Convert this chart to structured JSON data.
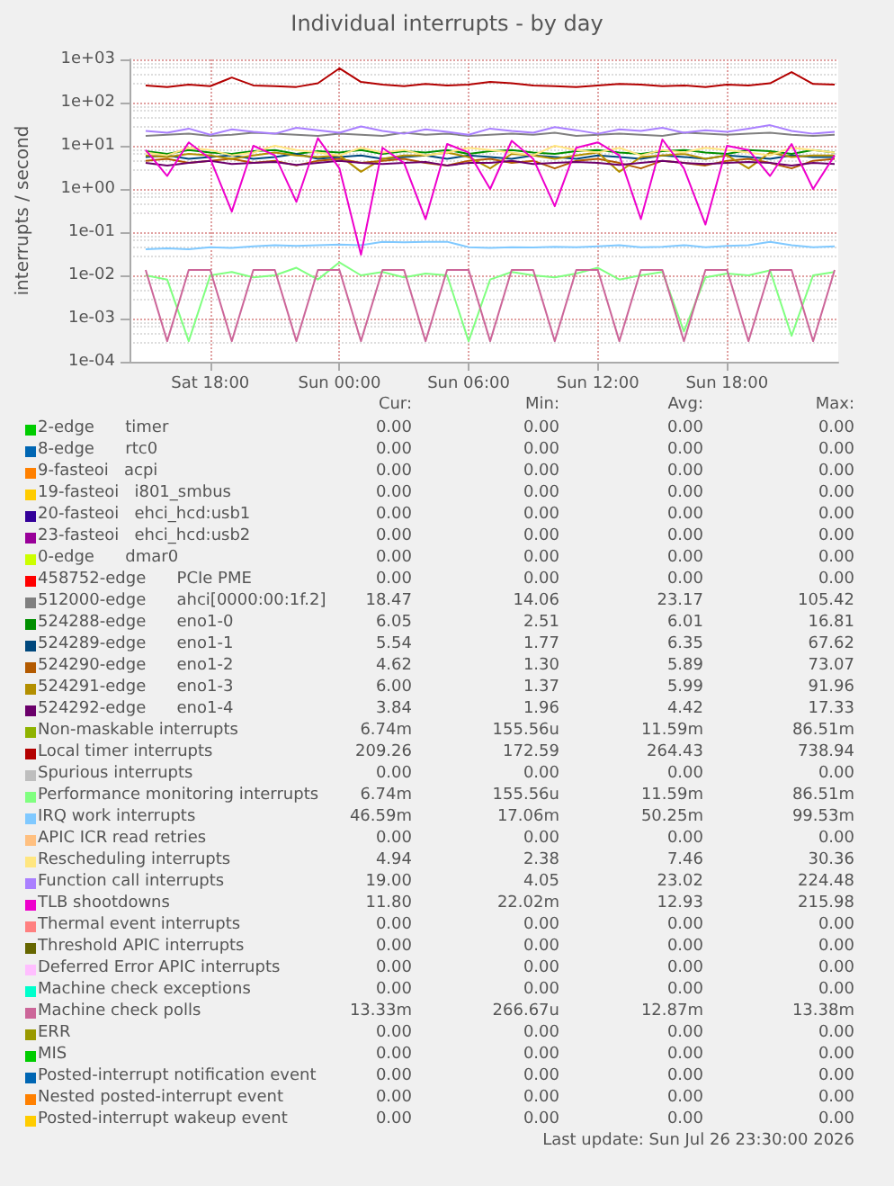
{
  "chart_data": {
    "type": "line",
    "title": "Individual interrupts - by day",
    "ylabel": "interrupts / second",
    "log": "y",
    "grid": true,
    "legend": "bottom",
    "marker": "none",
    "line_style": "solid",
    "xlim": [
      "2026-07-25T14:15",
      "2026-07-26T23:10"
    ],
    "xticks": [
      {
        "value": "2026-07-25T18:00",
        "label": "Sat 18:00"
      },
      {
        "value": "2026-07-26T00:00",
        "label": "Sun 00:00"
      },
      {
        "value": "2026-07-26T06:00",
        "label": "Sun 06:00"
      },
      {
        "value": "2026-07-26T12:00",
        "label": "Sun 12:00"
      },
      {
        "value": "2026-07-26T18:00",
        "label": "Sun 18:00"
      }
    ],
    "ylim": [
      0.0001,
      1000
    ],
    "yticks": [
      {
        "value": 0.0001,
        "label": "1e-04"
      },
      {
        "value": 0.001,
        "label": "1e-03"
      },
      {
        "value": 0.01,
        "label": "1e-02"
      },
      {
        "value": 0.1,
        "label": "1e-01"
      },
      {
        "value": 1,
        "label": "1e+00"
      },
      {
        "value": 10,
        "label": "1e+01"
      },
      {
        "value": 100,
        "label": "1e+02"
      },
      {
        "value": 1000,
        "label": "1e+03"
      }
    ],
    "x": [
      "2026-07-25T15:00",
      "2026-07-25T16:00",
      "2026-07-25T17:00",
      "2026-07-25T18:00",
      "2026-07-25T19:00",
      "2026-07-25T20:00",
      "2026-07-25T21:00",
      "2026-07-25T22:00",
      "2026-07-25T23:00",
      "2026-07-26T00:00",
      "2026-07-26T01:00",
      "2026-07-26T02:00",
      "2026-07-26T03:00",
      "2026-07-26T04:00",
      "2026-07-26T05:00",
      "2026-07-26T06:00",
      "2026-07-26T07:00",
      "2026-07-26T08:00",
      "2026-07-26T09:00",
      "2026-07-26T10:00",
      "2026-07-26T11:00",
      "2026-07-26T12:00",
      "2026-07-26T13:00",
      "2026-07-26T14:00",
      "2026-07-26T15:00",
      "2026-07-26T16:00",
      "2026-07-26T17:00",
      "2026-07-26T18:00",
      "2026-07-26T19:00",
      "2026-07-26T20:00",
      "2026-07-26T21:00",
      "2026-07-26T22:00",
      "2026-07-26T23:00"
    ],
    "series": [
      {
        "name": "2-edge      timer",
        "color": "#00cc00",
        "values": [
          null,
          null,
          null,
          null,
          null,
          null,
          null,
          null,
          null,
          null,
          null,
          null,
          null,
          null,
          null,
          null,
          null,
          null,
          null,
          null,
          null,
          null,
          null,
          null,
          null,
          null,
          null,
          null,
          null,
          null,
          null,
          null,
          null
        ]
      },
      {
        "name": "8-edge      rtc0",
        "color": "#0066b3",
        "values": [
          null,
          null,
          null,
          null,
          null,
          null,
          null,
          null,
          null,
          null,
          null,
          null,
          null,
          null,
          null,
          null,
          null,
          null,
          null,
          null,
          null,
          null,
          null,
          null,
          null,
          null,
          null,
          null,
          null,
          null,
          null,
          null,
          null
        ]
      },
      {
        "name": "9-fasteoi   acpi",
        "color": "#ff8000",
        "values": [
          null,
          null,
          null,
          null,
          null,
          null,
          null,
          null,
          null,
          null,
          null,
          null,
          null,
          null,
          null,
          null,
          null,
          null,
          null,
          null,
          null,
          null,
          null,
          null,
          null,
          null,
          null,
          null,
          null,
          null,
          null,
          null,
          null
        ]
      },
      {
        "name": "19-fasteoi   i801_smbus",
        "color": "#ffcc00",
        "values": [
          null,
          null,
          null,
          null,
          null,
          null,
          null,
          null,
          null,
          null,
          null,
          null,
          null,
          null,
          null,
          null,
          null,
          null,
          null,
          null,
          null,
          null,
          null,
          null,
          null,
          null,
          null,
          null,
          null,
          null,
          null,
          null,
          null
        ]
      },
      {
        "name": "20-fasteoi   ehci_hcd:usb1",
        "color": "#330099",
        "values": [
          null,
          null,
          null,
          null,
          null,
          null,
          null,
          null,
          null,
          null,
          null,
          null,
          null,
          null,
          null,
          null,
          null,
          null,
          null,
          null,
          null,
          null,
          null,
          null,
          null,
          null,
          null,
          null,
          null,
          null,
          null,
          null,
          null
        ]
      },
      {
        "name": "23-fasteoi   ehci_hcd:usb2",
        "color": "#990099",
        "values": [
          null,
          null,
          null,
          null,
          null,
          null,
          null,
          null,
          null,
          null,
          null,
          null,
          null,
          null,
          null,
          null,
          null,
          null,
          null,
          null,
          null,
          null,
          null,
          null,
          null,
          null,
          null,
          null,
          null,
          null,
          null,
          null,
          null
        ]
      },
      {
        "name": "0-edge      dmar0",
        "color": "#ccff00",
        "values": [
          null,
          null,
          null,
          null,
          null,
          null,
          null,
          null,
          null,
          null,
          null,
          null,
          null,
          null,
          null,
          null,
          null,
          null,
          null,
          null,
          null,
          null,
          null,
          null,
          null,
          null,
          null,
          null,
          null,
          null,
          null,
          null,
          null
        ]
      },
      {
        "name": "458752-edge      PCIe PME",
        "color": "#ff0000",
        "values": [
          null,
          null,
          null,
          null,
          null,
          null,
          null,
          null,
          null,
          null,
          null,
          null,
          null,
          null,
          null,
          null,
          null,
          null,
          null,
          null,
          null,
          null,
          null,
          null,
          null,
          null,
          null,
          null,
          null,
          null,
          null,
          null,
          null
        ]
      },
      {
        "name": "512000-edge      ahci[0000:00:1f.2]",
        "color": "#808080",
        "values": [
          17,
          18,
          19,
          17,
          18,
          20,
          19,
          18,
          17,
          19,
          18,
          17,
          20,
          18,
          19,
          17,
          18,
          19,
          18,
          20,
          17,
          18,
          19,
          18,
          17,
          20,
          19,
          18,
          19,
          20,
          18,
          17,
          18
        ]
      },
      {
        "name": "524288-edge      eno1-0",
        "color": "#008f00",
        "values": [
          7.5,
          6.5,
          8,
          7,
          6.5,
          7.5,
          8,
          6.5,
          7.5,
          7,
          8,
          6.5,
          7.5,
          7,
          8,
          6.5,
          7.5,
          8,
          7,
          6.5,
          7.5,
          8,
          7,
          6.5,
          7.5,
          8,
          7,
          6.5,
          8,
          7.5,
          6.5,
          8,
          7
        ]
      },
      {
        "name": "524289-edge      eno1-1",
        "color": "#00487d",
        "values": [
          5.5,
          6,
          5,
          5.5,
          6,
          5,
          5.5,
          6.5,
          5,
          5.5,
          6,
          5,
          5.5,
          6,
          5,
          6,
          5.5,
          5,
          6,
          5.5,
          5,
          6,
          5.5,
          5,
          6,
          5.5,
          5,
          6,
          5.5,
          5,
          6,
          5.5,
          5.5
        ]
      },
      {
        "name": "524290-edge      eno1-2",
        "color": "#b35a00",
        "values": [
          4.5,
          5,
          4,
          4.5,
          5,
          4,
          4.5,
          3.5,
          4.5,
          5,
          4,
          4.5,
          5,
          4,
          3.5,
          4.5,
          5,
          4,
          4.5,
          3,
          4.5,
          5,
          4,
          3,
          4.5,
          4,
          3.5,
          4.5,
          5,
          4,
          3,
          4.5,
          5
        ]
      },
      {
        "name": "524291-edge      eno1-3",
        "color": "#b38f00",
        "values": [
          6,
          5.5,
          6.5,
          6,
          5,
          6,
          7,
          6,
          5.5,
          6,
          2.5,
          5,
          6,
          6,
          7,
          5.5,
          3,
          6.5,
          6,
          5,
          6,
          7,
          2.5,
          5.5,
          6,
          6.5,
          5,
          6,
          3,
          7,
          5.5,
          6,
          6
        ]
      },
      {
        "name": "524292-edge      eno1-4",
        "color": "#6b006b",
        "values": [
          4,
          3.5,
          4,
          4.5,
          3.8,
          4,
          4.2,
          3.6,
          4,
          4.5,
          4,
          3.8,
          4,
          4.2,
          3.5,
          4,
          4,
          4.5,
          3.8,
          4,
          4.2,
          4,
          3.6,
          4,
          4.5,
          4,
          3.8,
          4,
          4.2,
          4,
          3.5,
          4,
          3.8
        ]
      },
      {
        "name": "Non-maskable interrupts",
        "color": "#8fb300",
        "values": [
          null,
          null,
          null,
          null,
          null,
          null,
          null,
          null,
          null,
          null,
          null,
          null,
          null,
          null,
          null,
          null,
          null,
          null,
          null,
          null,
          null,
          null,
          null,
          null,
          null,
          null,
          null,
          null,
          null,
          null,
          null,
          null,
          null
        ]
      },
      {
        "name": "Local timer interrupts",
        "color": "#b30000",
        "values": [
          250,
          230,
          260,
          240,
          380,
          250,
          240,
          230,
          280,
          620,
          300,
          260,
          240,
          270,
          250,
          260,
          300,
          280,
          250,
          240,
          230,
          250,
          270,
          260,
          240,
          250,
          230,
          260,
          250,
          280,
          510,
          270,
          260
        ]
      },
      {
        "name": "Spurious interrupts",
        "color": "#bebebe",
        "values": [
          null,
          null,
          null,
          null,
          null,
          null,
          null,
          null,
          null,
          null,
          null,
          null,
          null,
          null,
          null,
          null,
          null,
          null,
          null,
          null,
          null,
          null,
          null,
          null,
          null,
          null,
          null,
          null,
          null,
          null,
          null,
          null,
          null
        ]
      },
      {
        "name": "Performance monitoring interrupts",
        "color": "#80ff80",
        "values": [
          0.01,
          0.008,
          0.0003,
          0.01,
          0.012,
          0.009,
          0.01,
          0.015,
          0.008,
          0.02,
          0.01,
          0.012,
          0.009,
          0.011,
          0.01,
          0.0003,
          0.008,
          0.012,
          0.01,
          0.009,
          0.011,
          0.015,
          0.008,
          0.01,
          0.012,
          0.0005,
          0.009,
          0.011,
          0.01,
          0.013,
          0.0004,
          0.01,
          0.012
        ]
      },
      {
        "name": "IRQ work interrupts",
        "color": "#80c9ff",
        "values": [
          0.04,
          0.042,
          0.04,
          0.045,
          0.043,
          0.047,
          0.05,
          0.048,
          0.05,
          0.052,
          0.05,
          0.06,
          0.058,
          0.06,
          0.06,
          0.045,
          0.043,
          0.045,
          0.044,
          0.046,
          0.045,
          0.047,
          0.05,
          0.045,
          0.046,
          0.05,
          0.045,
          0.048,
          0.05,
          0.06,
          0.05,
          0.045,
          0.047
        ]
      },
      {
        "name": "APIC ICR read retries",
        "color": "#ffc080",
        "values": [
          null,
          null,
          null,
          null,
          null,
          null,
          null,
          null,
          null,
          null,
          null,
          null,
          null,
          null,
          null,
          null,
          null,
          null,
          null,
          null,
          null,
          null,
          null,
          null,
          null,
          null,
          null,
          null,
          null,
          null,
          null,
          null,
          null
        ]
      },
      {
        "name": "Rescheduling interrupts",
        "color": "#ffe680",
        "values": [
          7,
          6,
          9,
          8,
          6,
          7,
          10,
          8,
          7,
          6,
          9,
          7,
          8,
          6,
          7,
          9,
          8,
          7,
          6,
          10,
          8,
          7,
          9,
          6,
          8,
          7,
          9,
          8,
          7,
          6,
          9,
          8,
          7
        ]
      },
      {
        "name": "Function call interrupts",
        "color": "#aa80ff",
        "values": [
          22,
          20,
          25,
          18,
          24,
          21,
          19,
          26,
          23,
          20,
          28,
          22,
          19,
          24,
          21,
          18,
          25,
          22,
          20,
          27,
          23,
          19,
          24,
          22,
          26,
          20,
          23,
          21,
          25,
          30,
          22,
          19,
          21
        ]
      },
      {
        "name": "TLB shootdowns",
        "color": "#ee00cc",
        "values": [
          8,
          2,
          12,
          5,
          0.3,
          10,
          6,
          0.5,
          15,
          3,
          0.03,
          9,
          4,
          0.2,
          11,
          7,
          1,
          13,
          5,
          0.4,
          9,
          12,
          6,
          0.2,
          14,
          3,
          0.15,
          10,
          8,
          2,
          11,
          1,
          6
        ]
      },
      {
        "name": "Thermal event interrupts",
        "color": "#ff8080",
        "values": [
          null,
          null,
          null,
          null,
          null,
          null,
          null,
          null,
          null,
          null,
          null,
          null,
          null,
          null,
          null,
          null,
          null,
          null,
          null,
          null,
          null,
          null,
          null,
          null,
          null,
          null,
          null,
          null,
          null,
          null,
          null,
          null,
          null
        ]
      },
      {
        "name": "Threshold APIC interrupts",
        "color": "#666600",
        "values": [
          null,
          null,
          null,
          null,
          null,
          null,
          null,
          null,
          null,
          null,
          null,
          null,
          null,
          null,
          null,
          null,
          null,
          null,
          null,
          null,
          null,
          null,
          null,
          null,
          null,
          null,
          null,
          null,
          null,
          null,
          null,
          null,
          null
        ]
      },
      {
        "name": "Deferred Error APIC interrupts",
        "color": "#ffbfff",
        "values": [
          null,
          null,
          null,
          null,
          null,
          null,
          null,
          null,
          null,
          null,
          null,
          null,
          null,
          null,
          null,
          null,
          null,
          null,
          null,
          null,
          null,
          null,
          null,
          null,
          null,
          null,
          null,
          null,
          null,
          null,
          null,
          null,
          null
        ]
      },
      {
        "name": "Machine check exceptions",
        "color": "#00ffcc",
        "values": [
          null,
          null,
          null,
          null,
          null,
          null,
          null,
          null,
          null,
          null,
          null,
          null,
          null,
          null,
          null,
          null,
          null,
          null,
          null,
          null,
          null,
          null,
          null,
          null,
          null,
          null,
          null,
          null,
          null,
          null,
          null,
          null,
          null
        ]
      },
      {
        "name": "Machine check polls",
        "color": "#cc6699",
        "values": [
          0.0133,
          0.0003,
          0.0133,
          0.0133,
          0.0003,
          0.0133,
          0.0133,
          0.0003,
          0.0133,
          0.0133,
          0.0003,
          0.0133,
          0.0133,
          0.0003,
          0.0133,
          0.0133,
          0.0003,
          0.0133,
          0.0133,
          0.0003,
          0.0133,
          0.0133,
          0.0003,
          0.0133,
          0.0133,
          0.0003,
          0.0133,
          0.0133,
          0.0003,
          0.0133,
          0.0133,
          0.0003,
          0.0133
        ]
      },
      {
        "name": "ERR",
        "color": "#999900",
        "values": [
          null,
          null,
          null,
          null,
          null,
          null,
          null,
          null,
          null,
          null,
          null,
          null,
          null,
          null,
          null,
          null,
          null,
          null,
          null,
          null,
          null,
          null,
          null,
          null,
          null,
          null,
          null,
          null,
          null,
          null,
          null,
          null,
          null
        ]
      },
      {
        "name": "MIS",
        "color": "#00cc00",
        "values": [
          null,
          null,
          null,
          null,
          null,
          null,
          null,
          null,
          null,
          null,
          null,
          null,
          null,
          null,
          null,
          null,
          null,
          null,
          null,
          null,
          null,
          null,
          null,
          null,
          null,
          null,
          null,
          null,
          null,
          null,
          null,
          null,
          null
        ]
      },
      {
        "name": "Posted-interrupt notification event",
        "color": "#0066b3",
        "values": [
          null,
          null,
          null,
          null,
          null,
          null,
          null,
          null,
          null,
          null,
          null,
          null,
          null,
          null,
          null,
          null,
          null,
          null,
          null,
          null,
          null,
          null,
          null,
          null,
          null,
          null,
          null,
          null,
          null,
          null,
          null,
          null,
          null
        ]
      },
      {
        "name": "Nested posted-interrupt event",
        "color": "#ff8000",
        "values": [
          null,
          null,
          null,
          null,
          null,
          null,
          null,
          null,
          null,
          null,
          null,
          null,
          null,
          null,
          null,
          null,
          null,
          null,
          null,
          null,
          null,
          null,
          null,
          null,
          null,
          null,
          null,
          null,
          null,
          null,
          null,
          null,
          null
        ]
      },
      {
        "name": "Posted-interrupt wakeup event",
        "color": "#ffcc00",
        "values": [
          null,
          null,
          null,
          null,
          null,
          null,
          null,
          null,
          null,
          null,
          null,
          null,
          null,
          null,
          null,
          null,
          null,
          null,
          null,
          null,
          null,
          null,
          null,
          null,
          null,
          null,
          null,
          null,
          null,
          null,
          null,
          null,
          null
        ]
      }
    ],
    "annotations": [
      "Cur:",
      "Min:",
      "Avg:",
      "Max:",
      "0.00",
      "0.00",
      "0.00",
      "0.00",
      "0.00",
      "0.00",
      "0.00",
      "0.00",
      "0.00",
      "0.00",
      "0.00",
      "0.00",
      "0.00",
      "0.00",
      "0.00",
      "0.00",
      "0.00",
      "0.00",
      "0.00",
      "0.00",
      "0.00",
      "0.00",
      "0.00",
      "0.00",
      "0.00",
      "0.00",
      "0.00",
      "0.00",
      "0.00",
      "0.00",
      "0.00",
      "0.00",
      "18.47",
      "14.06",
      "23.17",
      "105.42",
      "6.05",
      "2.51",
      "6.01",
      "16.81",
      "5.54",
      "1.77",
      "6.35",
      "67.62",
      "4.62",
      "1.30",
      "5.89",
      "73.07",
      "6.00",
      "1.37",
      "5.99",
      "91.96",
      "3.84",
      "1.96",
      "4.42",
      "17.33",
      "6.74m",
      "155.56u",
      "11.59m",
      "86.51m",
      "209.26",
      "172.59",
      "264.43",
      "738.94",
      "0.00",
      "0.00",
      "0.00",
      "0.00",
      "6.74m",
      "155.56u",
      "11.59m",
      "86.51m",
      "46.59m",
      "17.06m",
      "50.25m",
      "99.53m",
      "0.00",
      "0.00",
      "0.00",
      "0.00",
      "4.94",
      "2.38",
      "7.46",
      "30.36",
      "19.00",
      "4.05",
      "23.02",
      "224.48",
      "11.80",
      "22.02m",
      "12.93",
      "215.98",
      "0.00",
      "0.00",
      "0.00",
      "0.00",
      "0.00",
      "0.00",
      "0.00",
      "0.00",
      "0.00",
      "0.00",
      "0.00",
      "0.00",
      "0.00",
      "0.00",
      "0.00",
      "0.00",
      "13.33m",
      "266.67u",
      "12.87m",
      "13.38m",
      "0.00",
      "0.00",
      "0.00",
      "0.00",
      "0.00",
      "0.00",
      "0.00",
      "0.00",
      "0.00",
      "0.00",
      "0.00",
      "0.00",
      "0.00",
      "0.00",
      "0.00",
      "0.00",
      "0.00",
      "0.00",
      "0.00",
      "0.00",
      "Last update: Sun Jul 26 23:30:00 2026"
    ]
  }
}
